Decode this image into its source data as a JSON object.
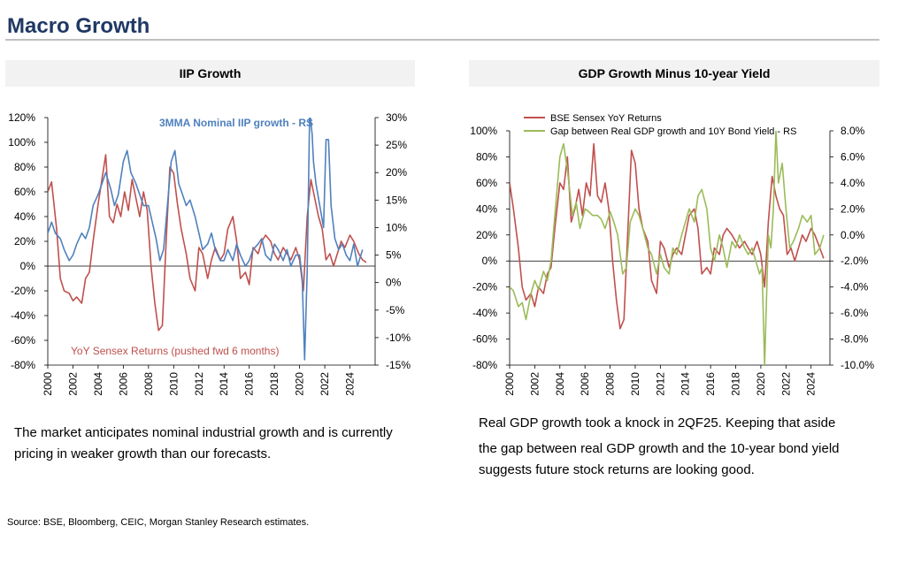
{
  "page": {
    "title": "Macro Growth",
    "left_caption": "The market anticipates nominal industrial growth and is currently pricing in weaker growth than our forecasts.",
    "right_caption_line1": "Real GDP growth took a knock in 2QF25. Keeping that aside",
    "right_caption_line2": "the gap between real GDP growth and the 10-year bond yield suggests future stock returns are looking good.",
    "source": "Source: BSE, Bloomberg, CEIC, Morgan Stanley Research estimates."
  },
  "colors": {
    "red": "#c0504d",
    "blue": "#4f81bd",
    "green": "#9bbb59",
    "title": "#1f3864",
    "header_bg": "#f2f2f2"
  },
  "chart_data": [
    {
      "type": "line",
      "title": "IIP Growth",
      "x_ticks": [
        "2000",
        "2002",
        "2004",
        "2006",
        "2008",
        "2010",
        "2012",
        "2014",
        "2016",
        "2018",
        "2020",
        "2022",
        "2024"
      ],
      "xlim": [
        2000,
        2026
      ],
      "left_ticks": [
        "120%",
        "100%",
        "80%",
        "60%",
        "40%",
        "20%",
        "0%",
        "-20%",
        "-40%",
        "-60%",
        "-80%"
      ],
      "ylim_left": [
        -80,
        120
      ],
      "right_ticks": [
        "30%",
        "25%",
        "20%",
        "15%",
        "10%",
        "5%",
        "0%",
        "-5%",
        "-10%",
        "-15%"
      ],
      "ylim_right": [
        -15,
        30
      ],
      "series": [
        {
          "name": "YoY Sensex Returns (pushed fwd 6 months)",
          "axis": "left",
          "color": "#c0504d",
          "x": [
            2000.0,
            2000.3,
            2000.7,
            2001.0,
            2001.3,
            2001.7,
            2002.0,
            2002.3,
            2002.7,
            2003.0,
            2003.3,
            2003.6,
            2004.0,
            2004.3,
            2004.6,
            2004.9,
            2005.2,
            2005.5,
            2005.8,
            2006.1,
            2006.4,
            2006.7,
            2007.0,
            2007.3,
            2007.6,
            2007.9,
            2008.2,
            2008.5,
            2008.8,
            2009.1,
            2009.4,
            2009.7,
            2010.0,
            2010.3,
            2010.6,
            2011.0,
            2011.3,
            2011.7,
            2012.0,
            2012.3,
            2012.7,
            2013.0,
            2013.3,
            2013.7,
            2014.0,
            2014.3,
            2014.7,
            2015.0,
            2015.3,
            2015.7,
            2016.0,
            2016.3,
            2016.7,
            2017.0,
            2017.3,
            2017.7,
            2018.0,
            2018.3,
            2018.7,
            2019.0,
            2019.3,
            2019.7,
            2020.0,
            2020.3,
            2020.6,
            2020.9,
            2021.2,
            2021.5,
            2021.8,
            2022.1,
            2022.4,
            2022.7,
            2023.0,
            2023.3,
            2023.6,
            2024.0,
            2024.3,
            2024.7,
            2025.0,
            2025.3
          ],
          "y": [
            60,
            68,
            30,
            -10,
            -20,
            -22,
            -28,
            -25,
            -30,
            -10,
            -5,
            20,
            50,
            70,
            90,
            40,
            35,
            50,
            40,
            60,
            45,
            70,
            55,
            40,
            60,
            45,
            0,
            -30,
            -52,
            -48,
            20,
            80,
            75,
            50,
            30,
            10,
            -10,
            -20,
            15,
            10,
            -10,
            5,
            15,
            5,
            10,
            30,
            40,
            20,
            -10,
            -5,
            -15,
            15,
            10,
            20,
            25,
            20,
            10,
            5,
            15,
            10,
            5,
            15,
            5,
            -20,
            40,
            70,
            55,
            40,
            30,
            5,
            10,
            0,
            10,
            20,
            15,
            25,
            20,
            10,
            5,
            3
          ]
        },
        {
          "name": "3MMA Nominal IIP growth - RS",
          "axis": "right",
          "color": "#4f81bd",
          "x": [
            2000.0,
            2000.3,
            2000.6,
            2001.0,
            2001.3,
            2001.7,
            2002.0,
            2002.3,
            2002.7,
            2003.0,
            2003.3,
            2003.6,
            2004.0,
            2004.3,
            2004.6,
            2005.0,
            2005.3,
            2005.6,
            2006.0,
            2006.3,
            2006.6,
            2007.0,
            2007.3,
            2007.6,
            2008.0,
            2008.3,
            2008.6,
            2008.9,
            2009.2,
            2009.5,
            2009.8,
            2010.1,
            2010.4,
            2010.7,
            2011.0,
            2011.3,
            2011.7,
            2012.0,
            2012.3,
            2012.7,
            2013.0,
            2013.3,
            2013.7,
            2014.0,
            2014.3,
            2014.7,
            2015.0,
            2015.3,
            2015.7,
            2016.0,
            2016.3,
            2016.7,
            2017.0,
            2017.3,
            2017.7,
            2018.0,
            2018.3,
            2018.7,
            2019.0,
            2019.3,
            2019.7,
            2020.0,
            2020.2,
            2020.4,
            2020.6,
            2020.8,
            2021.0,
            2021.1,
            2021.3,
            2021.6,
            2021.9,
            2022.1,
            2022.3,
            2022.5,
            2022.8,
            2023.1,
            2023.4,
            2023.7,
            2024.0,
            2024.3,
            2024.6,
            2025.0
          ],
          "y": [
            9,
            11,
            9,
            8,
            6,
            4,
            5,
            7,
            9,
            8,
            10,
            14,
            16,
            18,
            20,
            17,
            14,
            16,
            22,
            24,
            20,
            18,
            16,
            14,
            14,
            11,
            8,
            4,
            6,
            14,
            22,
            24,
            18,
            16,
            14,
            15,
            12,
            9,
            6,
            7,
            9,
            6,
            4,
            4,
            6,
            4,
            7,
            5,
            3,
            4,
            6,
            7,
            8,
            5,
            4,
            7,
            6,
            4,
            6,
            3,
            5,
            5,
            1,
            -14,
            2,
            31,
            27,
            22,
            18,
            14,
            10,
            26,
            26,
            14,
            8,
            6,
            7,
            5,
            4,
            7,
            3,
            6
          ]
        }
      ]
    },
    {
      "type": "line",
      "title": "GDP Growth Minus 10-year Yield",
      "x_ticks": [
        "2000",
        "2002",
        "2004",
        "2006",
        "2008",
        "2010",
        "2012",
        "2014",
        "2016",
        "2018",
        "2020",
        "2022",
        "2024"
      ],
      "xlim": [
        2000,
        2025.5
      ],
      "left_ticks": [
        "100%",
        "80%",
        "60%",
        "40%",
        "20%",
        "0%",
        "-20%",
        "-40%",
        "-60%",
        "-80%"
      ],
      "ylim_left": [
        -80,
        100
      ],
      "right_ticks": [
        "8.0%",
        "6.0%",
        "4.0%",
        "2.0%",
        "0.0%",
        "-2.0%",
        "-4.0%",
        "-6.0%",
        "-8.0%",
        "-10.0%"
      ],
      "ylim_right": [
        -10,
        8
      ],
      "series": [
        {
          "name": "BSE Sensex YoY Returns",
          "axis": "left",
          "color": "#c0504d",
          "x": [
            2000.0,
            2000.3,
            2000.7,
            2001.0,
            2001.3,
            2001.7,
            2002.0,
            2002.3,
            2002.7,
            2003.0,
            2003.3,
            2003.6,
            2004.0,
            2004.3,
            2004.6,
            2004.9,
            2005.2,
            2005.5,
            2005.8,
            2006.1,
            2006.4,
            2006.7,
            2007.0,
            2007.3,
            2007.6,
            2007.9,
            2008.2,
            2008.5,
            2008.8,
            2009.1,
            2009.4,
            2009.7,
            2010.0,
            2010.3,
            2010.6,
            2011.0,
            2011.3,
            2011.7,
            2012.0,
            2012.3,
            2012.7,
            2013.0,
            2013.3,
            2013.7,
            2014.0,
            2014.3,
            2014.7,
            2015.0,
            2015.3,
            2015.7,
            2016.0,
            2016.3,
            2016.7,
            2017.0,
            2017.3,
            2017.7,
            2018.0,
            2018.3,
            2018.7,
            2019.0,
            2019.3,
            2019.7,
            2020.0,
            2020.3,
            2020.6,
            2020.9,
            2021.2,
            2021.5,
            2021.8,
            2022.1,
            2022.4,
            2022.7,
            2023.0,
            2023.3,
            2023.6,
            2024.0,
            2024.3,
            2024.7,
            2025.0
          ],
          "y": [
            60,
            40,
            10,
            -20,
            -30,
            -25,
            -35,
            -20,
            -25,
            -10,
            -5,
            25,
            60,
            55,
            80,
            30,
            40,
            55,
            35,
            60,
            50,
            90,
            50,
            45,
            60,
            40,
            0,
            -30,
            -52,
            -45,
            20,
            85,
            75,
            40,
            25,
            15,
            -15,
            -25,
            15,
            10,
            -5,
            5,
            10,
            5,
            20,
            35,
            40,
            25,
            -10,
            -5,
            -10,
            10,
            5,
            20,
            25,
            20,
            15,
            10,
            15,
            10,
            5,
            15,
            5,
            -20,
            30,
            65,
            50,
            40,
            35,
            5,
            10,
            0,
            10,
            20,
            15,
            25,
            20,
            10,
            2
          ]
        },
        {
          "name": "Gap between Real GDP growth and 10Y Bond Yield - RS",
          "axis": "right",
          "color": "#9bbb59",
          "x": [
            2000.0,
            2000.3,
            2000.7,
            2001.0,
            2001.3,
            2001.7,
            2002.0,
            2002.3,
            2002.7,
            2003.0,
            2003.3,
            2003.6,
            2004.0,
            2004.3,
            2004.6,
            2005.0,
            2005.3,
            2005.6,
            2006.0,
            2006.3,
            2006.6,
            2007.0,
            2007.3,
            2007.6,
            2008.0,
            2008.3,
            2008.6,
            2009.0,
            2009.3,
            2009.6,
            2010.0,
            2010.3,
            2010.6,
            2011.0,
            2011.3,
            2011.7,
            2012.0,
            2012.3,
            2012.7,
            2013.0,
            2013.3,
            2013.7,
            2014.0,
            2014.3,
            2014.7,
            2015.0,
            2015.3,
            2015.7,
            2016.0,
            2016.3,
            2016.7,
            2017.0,
            2017.3,
            2017.7,
            2018.0,
            2018.3,
            2018.7,
            2019.0,
            2019.3,
            2019.6,
            2019.9,
            2020.1,
            2020.3,
            2020.6,
            2020.8,
            2021.0,
            2021.2,
            2021.4,
            2021.7,
            2022.0,
            2022.3,
            2022.6,
            2023.0,
            2023.3,
            2023.7,
            2024.0,
            2024.3,
            2024.7,
            2025.0
          ],
          "y": [
            -4,
            -4.3,
            -5.5,
            -5.2,
            -6.5,
            -4.5,
            -3.5,
            -4.2,
            -2.8,
            -3.5,
            -2,
            1.5,
            6,
            7,
            5,
            1.5,
            2.5,
            0.5,
            2,
            1.8,
            1.5,
            1.5,
            1.2,
            0.5,
            1.8,
            1,
            0,
            -3,
            -2.5,
            1,
            2,
            1.5,
            0.5,
            -1,
            -1.5,
            -3,
            -1.5,
            -2.5,
            -3,
            -1,
            -1.5,
            0,
            1,
            2,
            1,
            3,
            3.5,
            2,
            -1,
            -2,
            0,
            -1,
            -2.5,
            -0.5,
            -1,
            0,
            -1,
            -1.5,
            -1,
            -2,
            -3,
            -2.5,
            -10,
            0,
            -1,
            2,
            8,
            4,
            5.5,
            2,
            -1,
            -0.5,
            0.5,
            1.5,
            1,
            1.5,
            -1.5,
            -1,
            0
          ]
        }
      ]
    }
  ]
}
